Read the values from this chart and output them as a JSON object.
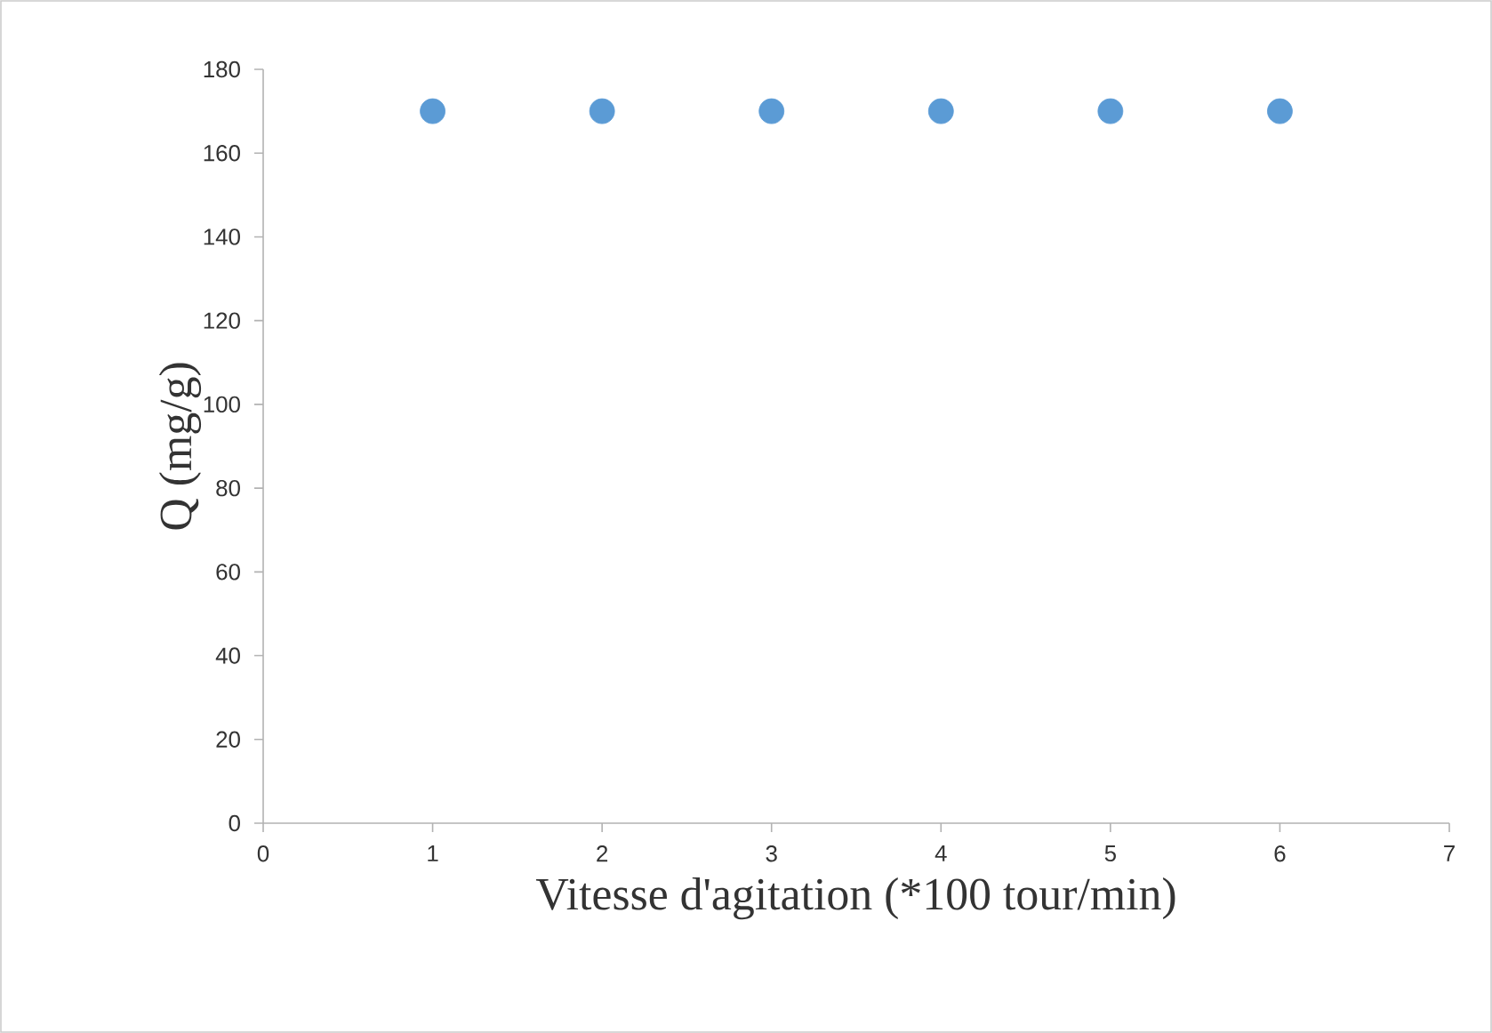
{
  "chart_data": {
    "type": "scatter",
    "xlabel": "Vitesse d'agitation (*100 tour/min)",
    "ylabel": "Q (mg/g)",
    "x": [
      1,
      2,
      3,
      4,
      5,
      6
    ],
    "series": [
      {
        "color": "#5b9bd5",
        "values": [
          170,
          170,
          170,
          170,
          170,
          170
        ]
      }
    ],
    "xlim": [
      0,
      7
    ],
    "xticks": [
      0,
      1,
      2,
      3,
      4,
      5,
      6,
      7
    ],
    "ylim": [
      0,
      180
    ],
    "yticks": [
      0,
      20,
      40,
      60,
      80,
      100,
      120,
      140,
      160,
      180
    ],
    "marker": "circle",
    "grid": false
  }
}
